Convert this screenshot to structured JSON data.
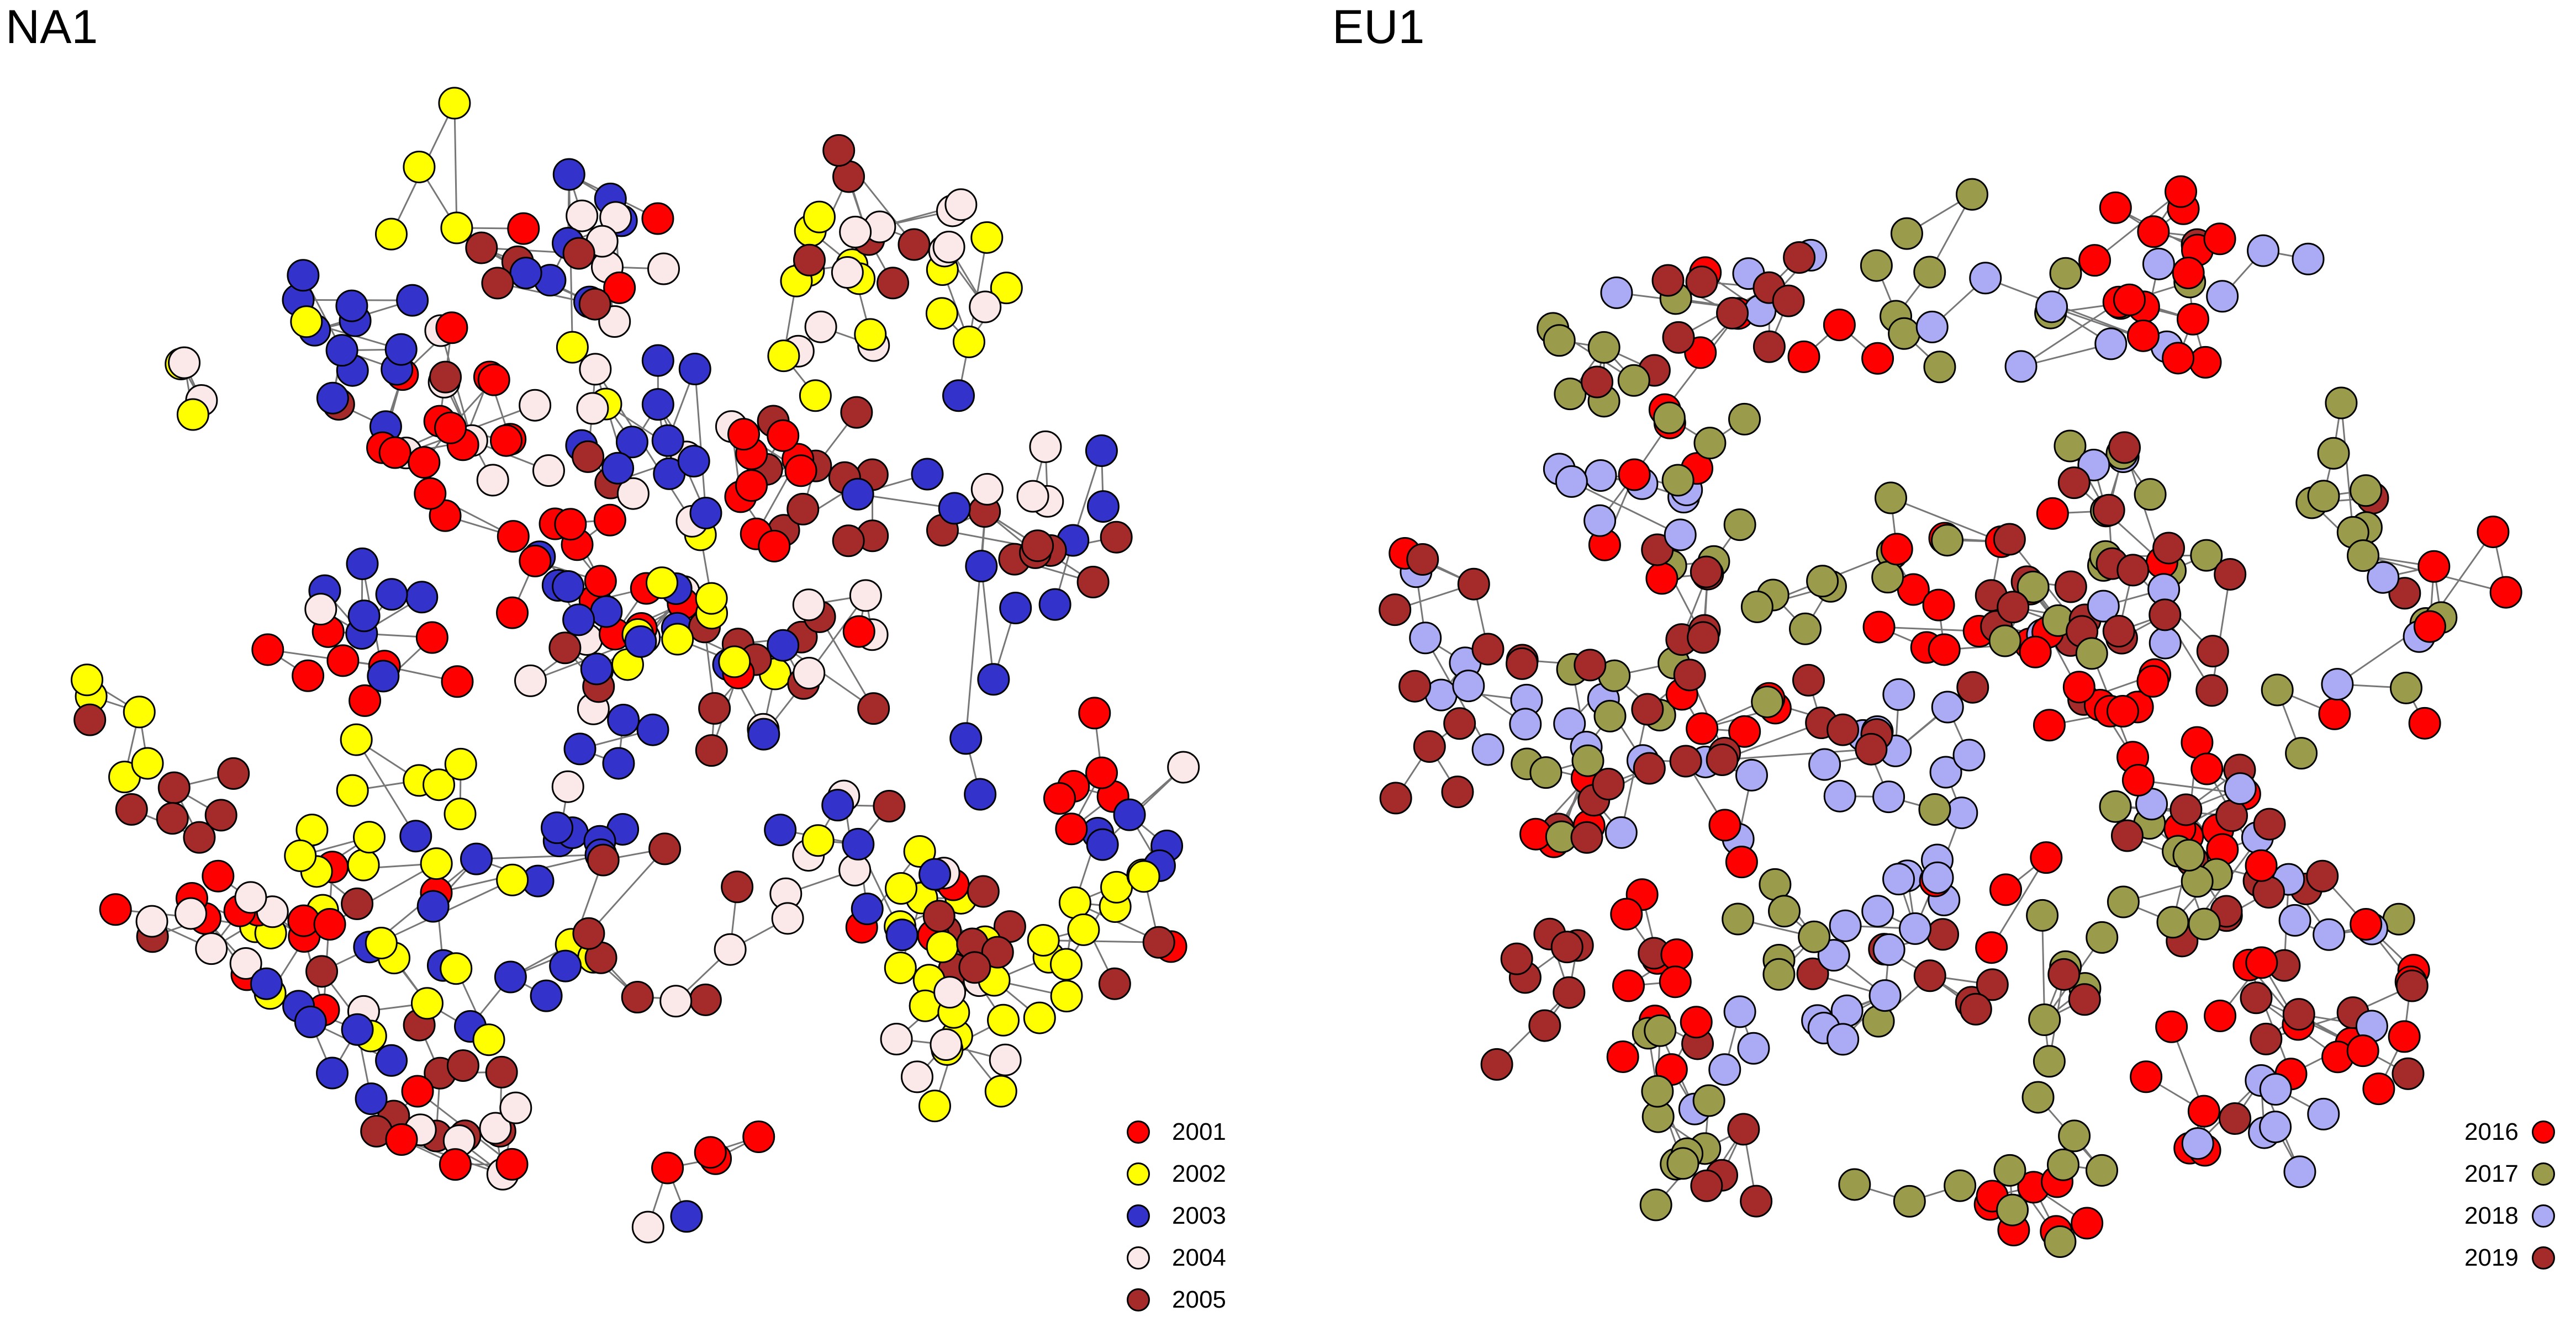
{
  "panels": [
    {
      "id": "na",
      "title": "NA1",
      "legend": [
        {
          "label": "2001",
          "color": "#ff0000"
        },
        {
          "label": "2002",
          "color": "#ffff00"
        },
        {
          "label": "2003",
          "color": "#3333cc"
        },
        {
          "label": "2004",
          "color": "#fbe9e9"
        },
        {
          "label": "2005",
          "color": "#a52a2a"
        }
      ]
    },
    {
      "id": "eu",
      "title": "EU1",
      "legend": [
        {
          "label": "2016",
          "color": "#ff0000"
        },
        {
          "label": "2017",
          "color": "#9b9b4c"
        },
        {
          "label": "2018",
          "color": "#aaaaf5"
        },
        {
          "label": "2019",
          "color": "#a52a2a"
        }
      ]
    }
  ]
}
